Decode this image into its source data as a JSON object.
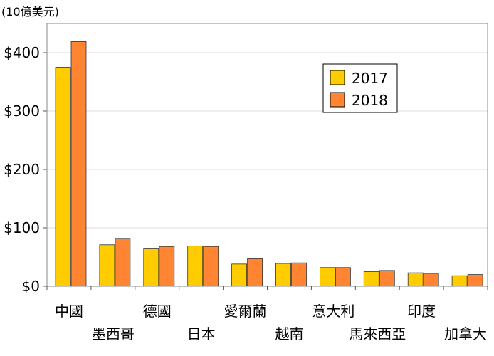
{
  "chart_data": {
    "type": "bar",
    "unit_label": "(10億美元)",
    "categories": [
      "中國",
      "墨西哥",
      "德國",
      "日本",
      "愛爾蘭",
      "越南",
      "意大利",
      "馬來西亞",
      "印度",
      "加拿大"
    ],
    "series": [
      {
        "name": "2017",
        "color": "#ffcc00",
        "values": [
          375,
          71,
          64,
          69,
          38,
          39,
          32,
          25,
          23,
          18
        ]
      },
      {
        "name": "2018",
        "color": "#ff8533",
        "values": [
          419,
          82,
          68,
          68,
          47,
          40,
          32,
          27,
          22,
          20
        ]
      }
    ],
    "yticks": [
      "$0",
      "$100",
      "$200",
      "$300",
      "$400"
    ],
    "ytick_values": [
      0,
      100,
      200,
      300,
      400
    ],
    "ylim": [
      0,
      450
    ],
    "grid": true,
    "legend_position": "top-right"
  }
}
